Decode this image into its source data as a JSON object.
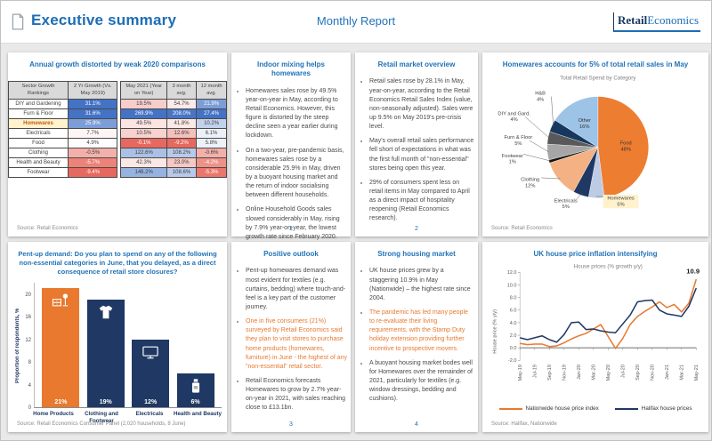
{
  "header": {
    "title": "Executive summary",
    "subtitle": "Monthly Report",
    "logo_retail": "Retail",
    "logo_economics": "Economics"
  },
  "panels": {
    "growth_table": {
      "title": "Annual growth distorted by weak 2020 comparisons",
      "source": "Source: Retail Economics",
      "header": [
        "Sector Growth Rankings",
        "2 Yr Growth (Vs. May 2019)",
        "May 2021 (Year on Year)",
        "3 month avg.",
        "12 month avg."
      ],
      "rows": [
        {
          "label": "DIY and Gardening",
          "label_bg": "#FFFFFF",
          "label_fg": "#404040",
          "label_bold": false,
          "cells": [
            [
              "31.1%",
              "#4472C4",
              "#FFFFFF"
            ],
            [
              "19.5%",
              "#F7CDCB",
              "#404040"
            ],
            [
              "54.7%",
              "#FBEAE9",
              "#404040"
            ],
            [
              "21.9%",
              "#7D9DD6",
              "#FFFFFF"
            ]
          ]
        },
        {
          "label": "Furn & Floor",
          "label_bg": "#FFFFFF",
          "label_fg": "#404040",
          "label_bold": false,
          "cells": [
            [
              "31.6%",
              "#4472C4",
              "#FFFFFF"
            ],
            [
              "269.9%",
              "#4472C4",
              "#FFFFFF"
            ],
            [
              "208.0%",
              "#4875C6",
              "#FFFFFF"
            ],
            [
              "27.4%",
              "#4472C4",
              "#FFFFFF"
            ]
          ]
        },
        {
          "label": "Homewares",
          "label_bg": "#FFF2CC",
          "label_fg": "#C55A11",
          "label_bold": true,
          "cells": [
            [
              "25.9%",
              "#7D9DD6",
              "#FFFFFF"
            ],
            [
              "49.5%",
              "#FBE5E3",
              "#404040"
            ],
            [
              "41.8%",
              "#FBE9E7",
              "#404040"
            ],
            [
              "10.2%",
              "#C3D2EC",
              "#404040"
            ]
          ]
        },
        {
          "label": "Electricals",
          "label_bg": "#FFFFFF",
          "label_fg": "#404040",
          "label_bold": false,
          "cells": [
            [
              "7.7%",
              "#FDF6F5",
              "#404040"
            ],
            [
              "10.5%",
              "#F8D2CF",
              "#404040"
            ],
            [
              "12.6%",
              "#F4C0BB",
              "#404040"
            ],
            [
              "6.1%",
              "#ECF1F9",
              "#404040"
            ]
          ]
        },
        {
          "label": "Food",
          "label_bg": "#FFFFFF",
          "label_fg": "#404040",
          "label_bold": false,
          "cells": [
            [
              "4.9%",
              "#FEFCFC",
              "#404040"
            ],
            [
              "-0.1%",
              "#E7685E",
              "#FFFFFF"
            ],
            [
              "-9.2%",
              "#E7685E",
              "#FFFFFF"
            ],
            [
              "5.8%",
              "#EDF2F9",
              "#404040"
            ]
          ]
        },
        {
          "label": "Clothing",
          "label_bg": "#FFFFFF",
          "label_fg": "#404040",
          "label_bold": false,
          "cells": [
            [
              "-0.5%",
              "#F3B0AA",
              "#404040"
            ],
            [
              "122.6%",
              "#AAC0E4",
              "#404040"
            ],
            [
              "108.2%",
              "#B8CAE9",
              "#404040"
            ],
            [
              "-0.6%",
              "#F3B0AA",
              "#404040"
            ]
          ]
        },
        {
          "label": "Health and Beauty",
          "label_bg": "#FFFFFF",
          "label_fg": "#404040",
          "label_bold": false,
          "cells": [
            [
              "-5.7%",
              "#EC8278",
              "#FFFFFF"
            ],
            [
              "42.3%",
              "#FBE7E5",
              "#404040"
            ],
            [
              "23.0%",
              "#F6C8C4",
              "#404040"
            ],
            [
              "-4.2%",
              "#EE9288",
              "#FFFFFF"
            ]
          ]
        },
        {
          "label": "Footwear",
          "label_bg": "#FFFFFF",
          "label_fg": "#404040",
          "label_bold": false,
          "cells": [
            [
              "-9.4%",
              "#E7685E",
              "#FFFFFF"
            ],
            [
              "146.2%",
              "#96B2DF",
              "#404040"
            ],
            [
              "108.6%",
              "#B8CAE9",
              "#404040"
            ],
            [
              "-5.3%",
              "#EA766C",
              "#FFFFFF"
            ]
          ]
        }
      ]
    },
    "text_panels": [
      {
        "title": "Indoor mixing helps homewares",
        "page": "1",
        "bullets": [
          {
            "text": "Homewares sales rose by 49.5% year-on-year in May, according to Retail Economics. However, this figure is distorted by the steep decline seen a year earlier during lockdown.",
            "color": "default"
          },
          {
            "text": "On a two-year, pre-pandemic basis, homewares sales rose by a considerable 25.9% in May, driven by a buoyant housing market and the return of indoor socialising between different households.",
            "color": "default"
          },
          {
            "text": "Online Household Goods sales slowed considerably in May, rising by 7.9% year-on-year, the lowest growth rate since February 2020.",
            "color": "default"
          }
        ]
      },
      {
        "title": "Retail market overview",
        "page": "2",
        "bullets": [
          {
            "text": "Retail sales rose by 28.1% in May, year-on-year, according to the Retail Economics Retail Sales Index (value, non-seasonally adjusted). Sales were up 9.5% on May 2019's pre-crisis level.",
            "color": "default"
          },
          {
            "text": "May's overall retail sales performance fell short of expectations in what was the first full month of \"non-essential\" stores being open this year.",
            "color": "default"
          },
          {
            "text": "29% of consumers spent less on retail items in May compared to April as a direct impact of hospitality reopening (Retail Economics research).",
            "color": "default"
          }
        ]
      },
      {
        "title": "Positive outlook",
        "page": "3",
        "bullets": [
          {
            "text": "Pent-up homewares demand was most evident for textiles (e.g. curtains, bedding) where touch-and-feel is a key part of the customer journey.",
            "color": "default"
          },
          {
            "text": "One in five consumers (21%) surveyed by Retail Economics said they plan to visit stores to purchase home products (homewares, furniture) in June - the highest of any \"non-essential\" retail sector.",
            "color": "accent"
          },
          {
            "text": "Retail Economics forecasts Homewares to grow by 2.7% year-on-year in 2021, with sales reaching close to £13.1bn.",
            "color": "default"
          }
        ]
      },
      {
        "title": "Strong housing market",
        "page": "4",
        "bullets": [
          {
            "text": "UK house prices grew by a staggering 10.9% in May (Nationwide) – the highest rate since 2004.",
            "color": "default"
          },
          {
            "text": "The pandemic has led many people to re-evaluate their living requirements, with the Stamp Duty holiday extension providing further incentive to prospective movers.",
            "color": "accent"
          },
          {
            "text": "A buoyant housing market bodes well for Homewares over the remainder of 2021, particularly for textiles (e.g. window dressings, bedding and cushions).",
            "color": "default"
          }
        ]
      }
    ]
  },
  "chart_data": [
    {
      "type": "bar",
      "title": "Pent-up demand: Do you plan to spend on any of the following non-essential categories in June, that you delayed, as a direct consequence of retail store closures?",
      "categories": [
        "Home Products",
        "Clothing and Footwear",
        "Electricals",
        "Health and Beauty"
      ],
      "values": [
        21,
        19,
        12,
        6
      ],
      "data_labels": [
        "21%",
        "19%",
        "12%",
        "6%"
      ],
      "bar_colors": [
        "#E8792F",
        "#1F3864",
        "#1F3864",
        "#1F3864"
      ],
      "icons": [
        "furniture-icon",
        "clothing-icon",
        "tv-icon",
        "toiletries-icon"
      ],
      "ylabel": "Proportion of respondents, %",
      "yticks": [
        0,
        4,
        8,
        12,
        16,
        20
      ],
      "ylim": [
        0,
        22
      ],
      "grid": false,
      "source": "Source: Retail Economics Consumer Panel (2,020 households, 8 June)"
    },
    {
      "type": "pie",
      "title": "Homewares accounts for 5% of total retail sales in May",
      "subtitle": "Total Retail Spend by Category",
      "slices": [
        {
          "name": "Food",
          "value": 48,
          "color": "#ED7D31",
          "label_inside": true
        },
        {
          "name": "Homewares",
          "value": 5,
          "color": "#BDCCE4",
          "highlight": true
        },
        {
          "name": "Electricals",
          "value": 5,
          "color": "#1F3864"
        },
        {
          "name": "Clothing",
          "value": 12,
          "color": "#F4B183"
        },
        {
          "name": "Footwear",
          "value": 1,
          "color": "#141414"
        },
        {
          "name": "Furn & Floor",
          "value": 5,
          "color": "#A6A6A6"
        },
        {
          "name": "DIY and Gard.",
          "value": 4,
          "color": "#595959"
        },
        {
          "name": "H&B",
          "value": 4,
          "color": "#17375E"
        },
        {
          "name": "Other",
          "value": 16,
          "color": "#9DC3E6",
          "label_inside": true
        }
      ],
      "source": "Source: Retail Economics"
    },
    {
      "type": "line",
      "title": "UK house price inflation intensifying",
      "subtitle": "House prices (% growth y/y)",
      "ylabel": "House price (% y/y)",
      "x": [
        "May-19",
        "Jun-19",
        "Jul-19",
        "Aug-19",
        "Sep-19",
        "Oct-19",
        "Nov-19",
        "Dec-19",
        "Jan-20",
        "Feb-20",
        "Mar-20",
        "Apr-20",
        "May-20",
        "Jun-20",
        "Jul-20",
        "Aug-20",
        "Sep-20",
        "Oct-20",
        "Nov-20",
        "Dec-20",
        "Jan-21",
        "Feb-21",
        "Mar-21",
        "Apr-21",
        "May-21"
      ],
      "xtick_every": 2,
      "yticks": [
        -2,
        0,
        2,
        4,
        6,
        8,
        10,
        12
      ],
      "ylim": [
        -2,
        12
      ],
      "grid": false,
      "annotation": "10.9",
      "series": [
        {
          "name": "Nationwide house price index",
          "color": "#E8792F",
          "values": [
            0.7,
            0.5,
            0.6,
            0.6,
            0.2,
            0.3,
            0.8,
            1.4,
            1.9,
            2.3,
            3.0,
            3.7,
            1.8,
            -0.1,
            1.5,
            3.7,
            5.0,
            5.8,
            6.5,
            7.3,
            6.4,
            6.9,
            5.7,
            7.1,
            10.9
          ]
        },
        {
          "name": "Halifax house prices",
          "color": "#1F3864",
          "values": [
            1.6,
            1.3,
            1.6,
            1.9,
            1.3,
            0.9,
            2.1,
            4.0,
            4.1,
            2.9,
            3.0,
            2.7,
            2.5,
            2.4,
            3.8,
            5.2,
            7.3,
            7.5,
            7.6,
            6.0,
            5.4,
            5.2,
            5.0,
            6.6,
            9.5
          ]
        }
      ],
      "legend_position": "bottom",
      "source": "Source: Halifax, Nationwide"
    }
  ]
}
